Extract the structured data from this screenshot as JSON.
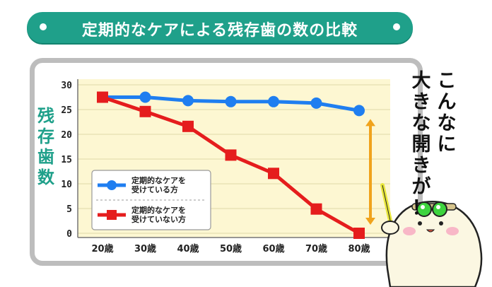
{
  "title": "定期的なケアによる残存歯の数の比較",
  "side_text": [
    "こんなに",
    "大きな開きが！"
  ],
  "colors": {
    "banner": "#1fa08a",
    "plot_bg": "#fdf7d2",
    "care_line": "#1f7ef0",
    "no_care_line": "#e51d1d",
    "gap_arrow": "#f0a31c",
    "frame": "#bdbdbd"
  },
  "chart_data": {
    "type": "line",
    "categories": [
      "20歳",
      "30歳",
      "40歳",
      "50歳",
      "60歳",
      "70歳",
      "80歳"
    ],
    "ylabel": "残存歯数",
    "ylim": [
      0,
      30
    ],
    "yticks": [
      0,
      5,
      10,
      15,
      20,
      25,
      30
    ],
    "grid": true,
    "legend_position": "bottom-left",
    "series": [
      {
        "name": "定期的なケアを\n受けている方",
        "marker": "circle",
        "values": [
          27.5,
          27.5,
          26.8,
          26.6,
          26.6,
          26.3,
          24.8
        ]
      },
      {
        "name": "定期的なケアを\n受けていない方",
        "marker": "square",
        "values": [
          27.5,
          24.6,
          21.6,
          15.8,
          12.1,
          4.9,
          0
        ]
      }
    ],
    "annotation": {
      "type": "double-arrow",
      "between_values": [
        24.8,
        0
      ],
      "at_category": "80歳"
    }
  }
}
